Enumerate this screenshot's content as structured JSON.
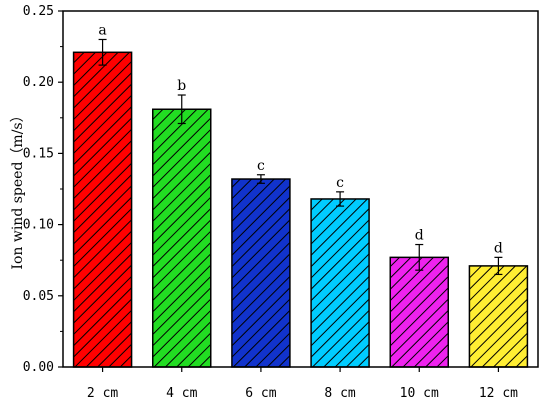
{
  "chart_data": {
    "type": "bar",
    "title": "",
    "xlabel": "",
    "ylabel": "Ion wind speed（m/s）",
    "ylim": [
      0,
      0.25
    ],
    "y_ticks": [
      "0.00",
      "0.05",
      "0.10",
      "0.15",
      "0.20",
      "0.25"
    ],
    "categories": [
      "2 cm",
      "4 cm",
      "6 cm",
      "8 cm",
      "10 cm",
      "12 cm"
    ],
    "values": [
      0.221,
      0.181,
      0.132,
      0.118,
      0.077,
      0.071
    ],
    "errors": [
      0.009,
      0.01,
      0.003,
      0.005,
      0.009,
      0.006
    ],
    "significance_labels": [
      "a",
      "b",
      "c",
      "c",
      "d",
      "d"
    ],
    "bar_colors": [
      "#ff0000",
      "#22dd22",
      "#1133cc",
      "#00ccff",
      "#ee22ee",
      "#ffee33"
    ],
    "hatch": "diagonal",
    "grid": false,
    "legend": "none"
  }
}
